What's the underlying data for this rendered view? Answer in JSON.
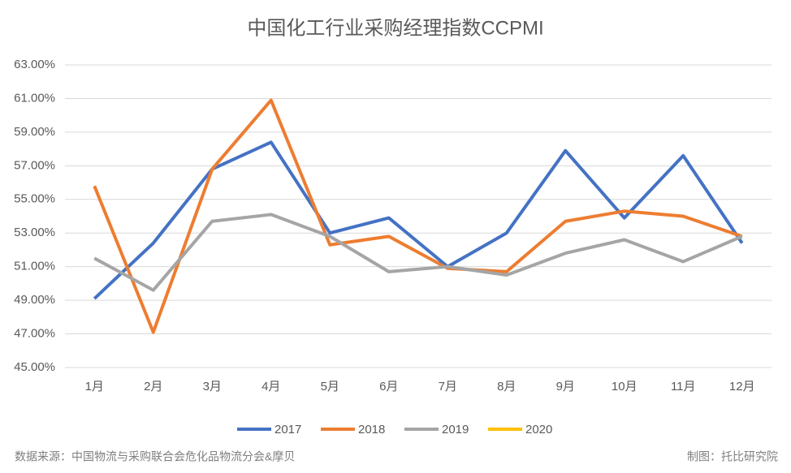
{
  "chart_data": {
    "type": "line",
    "title": "中国化工行业采购经理指数CCPMI",
    "categories": [
      "1月",
      "2月",
      "3月",
      "4月",
      "5月",
      "6月",
      "7月",
      "8月",
      "9月",
      "10月",
      "11月",
      "12月"
    ],
    "series": [
      {
        "name": "2017",
        "color": "#4472c4",
        "values": [
          49.1,
          52.4,
          56.8,
          58.4,
          53.0,
          53.9,
          51.0,
          53.0,
          57.9,
          53.9,
          57.6,
          52.4
        ]
      },
      {
        "name": "2018",
        "color": "#ed7d31",
        "values": [
          55.8,
          47.1,
          56.8,
          60.9,
          52.3,
          52.8,
          50.9,
          50.7,
          53.7,
          54.3,
          54.0,
          52.8
        ]
      },
      {
        "name": "2019",
        "color": "#a5a5a5",
        "values": [
          51.5,
          49.6,
          53.7,
          54.1,
          52.8,
          50.7,
          51.0,
          50.5,
          51.8,
          52.6,
          51.3,
          52.8
        ]
      },
      {
        "name": "2020",
        "color": "#ffc000",
        "values": [
          null,
          null,
          null,
          null,
          null,
          null,
          null,
          null,
          null,
          null,
          null,
          null
        ]
      }
    ],
    "ylim": [
      45,
      63
    ],
    "yticks": [
      {
        "value": 45,
        "label": "45.00%"
      },
      {
        "value": 47,
        "label": "47.00%"
      },
      {
        "value": 49,
        "label": "49.00%"
      },
      {
        "value": 51,
        "label": "51.00%"
      },
      {
        "value": 53,
        "label": "53.00%"
      },
      {
        "value": 55,
        "label": "55.00%"
      },
      {
        "value": 57,
        "label": "57.00%"
      },
      {
        "value": 59,
        "label": "59.00%"
      },
      {
        "value": 61,
        "label": "61.00%"
      },
      {
        "value": 63,
        "label": "63.00%"
      }
    ],
    "grid": true,
    "legend": "bottom",
    "source": "数据来源：中国物流与采购联合会危化品物流分会&摩贝",
    "credit": "制图：托比研究院"
  }
}
